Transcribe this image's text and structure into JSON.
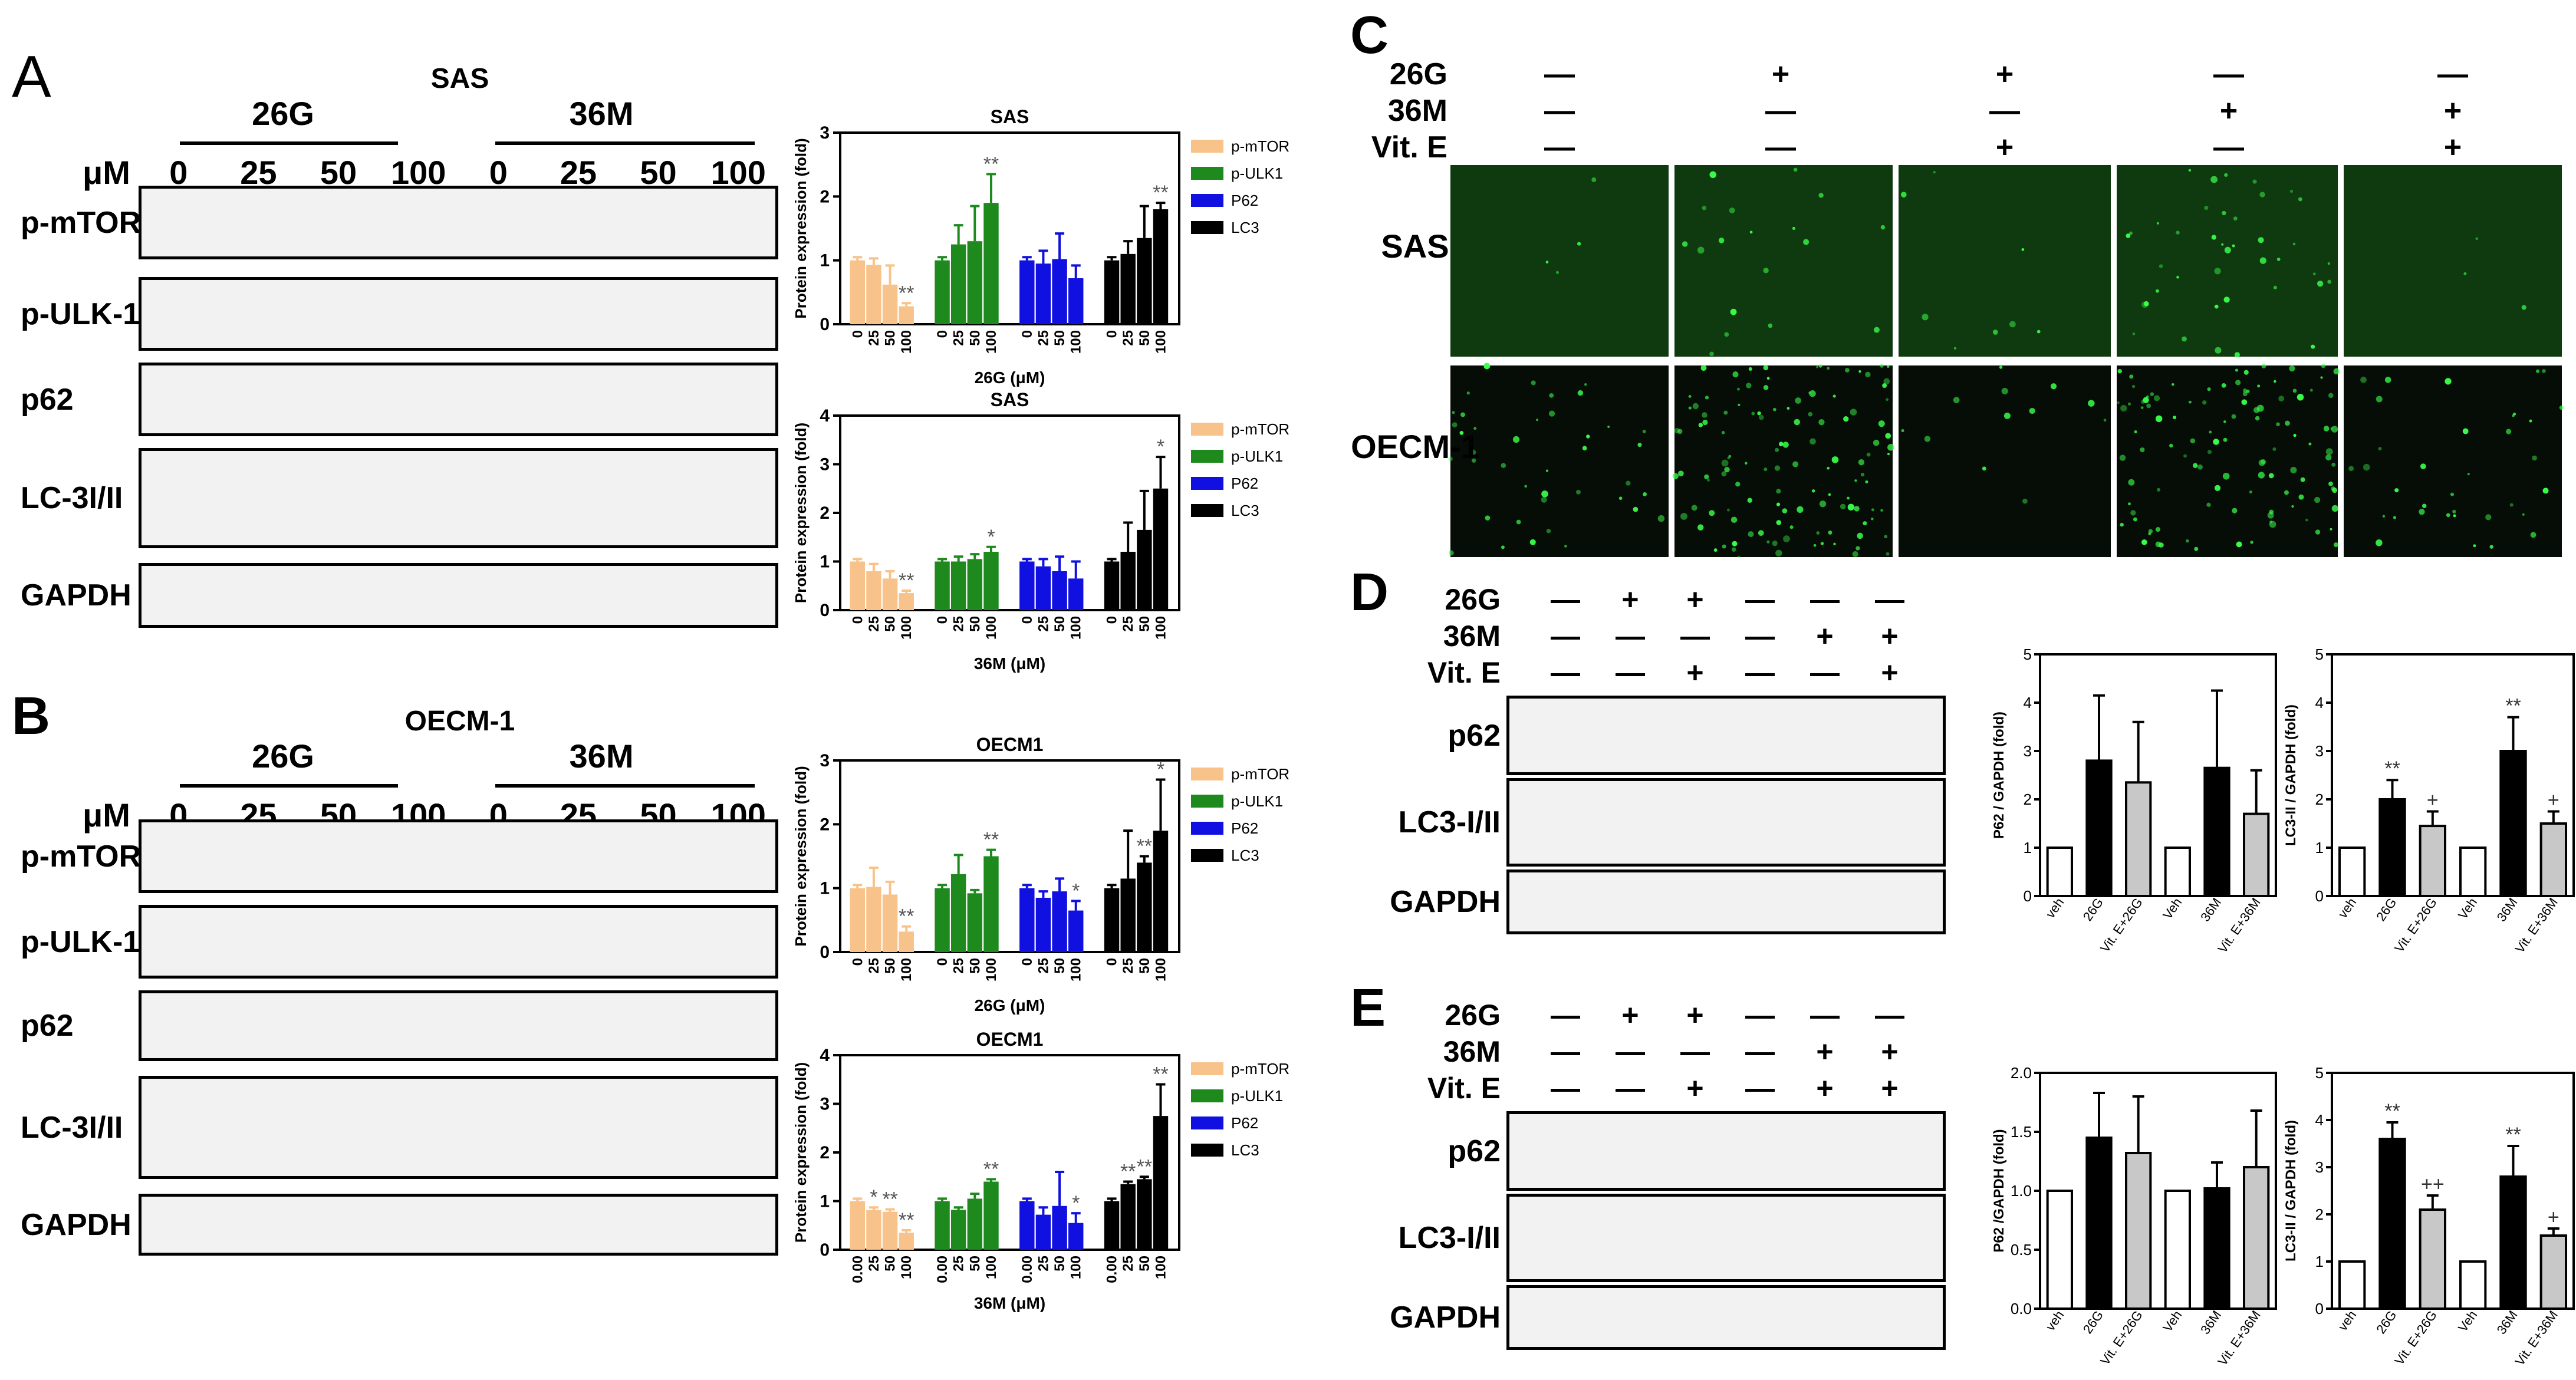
{
  "panels": {
    "A": {
      "letter": "A",
      "cell_line": "SAS",
      "groups": [
        "26G",
        "36M"
      ],
      "dose_label": "μM",
      "doses": [
        "0",
        "25",
        "50",
        "100",
        "0",
        "25",
        "50",
        "100"
      ],
      "blots": [
        "p-mTOR",
        "p-ULK-1",
        "p62",
        "LC-3I/II",
        "GAPDH"
      ]
    },
    "B": {
      "letter": "B",
      "cell_line": "OECM-1",
      "groups": [
        "26G",
        "36M"
      ],
      "dose_label": "μM",
      "doses": [
        "0",
        "25",
        "50",
        "100",
        "0",
        "25",
        "50",
        "100"
      ],
      "blots": [
        "p-mTOR",
        "p-ULK-1",
        "p62",
        "LC-3I/II",
        "GAPDH"
      ]
    },
    "C": {
      "letter": "C",
      "treatments": [
        {
          "label": "26G",
          "marks": [
            "—",
            "+",
            "+",
            "—",
            "—"
          ]
        },
        {
          "label": "36M",
          "marks": [
            "—",
            "—",
            "—",
            "+",
            "+"
          ]
        },
        {
          "label": "Vit. E",
          "marks": [
            "—",
            "—",
            "+",
            "—",
            "+"
          ]
        }
      ],
      "rows": [
        "SAS",
        "OECM-1"
      ]
    },
    "D": {
      "letter": "D",
      "treatments": [
        {
          "label": "26G",
          "marks": [
            "—",
            "+",
            "+",
            "—",
            "—",
            "—"
          ]
        },
        {
          "label": "36M",
          "marks": [
            "—",
            "—",
            "—",
            "—",
            "+",
            "+"
          ]
        },
        {
          "label": "Vit. E",
          "marks": [
            "—",
            "—",
            "+",
            "—",
            "—",
            "+"
          ]
        }
      ],
      "blots": [
        "p62",
        "LC3-I/II",
        "GAPDH"
      ]
    },
    "E": {
      "letter": "E",
      "treatments": [
        {
          "label": "26G",
          "marks": [
            "—",
            "+",
            "+",
            "—",
            "—",
            "—"
          ]
        },
        {
          "label": "36M",
          "marks": [
            "—",
            "—",
            "—",
            "—",
            "+",
            "+"
          ]
        },
        {
          "label": "Vit. E",
          "marks": [
            "—",
            "—",
            "+",
            "—",
            "+",
            "+"
          ]
        }
      ],
      "blots": [
        "p62",
        "LC3-I/II",
        "GAPDH"
      ]
    }
  },
  "colors": {
    "p-mTOR": "#f8c38a",
    "p-ULK1": "#1e8a1e",
    "P62": "#1010e0",
    "LC3": "#000000",
    "black_bar": "#000000",
    "gray_bar": "#c8c8c8",
    "white_bar": "#ffffff",
    "fluorescence": "#0b1a0b",
    "dots": "#39ff4a"
  },
  "chart_data": [
    {
      "type": "bar",
      "title": "SAS",
      "xlabel": "26G (μM)",
      "ylabel": "Protein expression (fold)",
      "ylim": [
        0,
        3
      ],
      "yticks": [
        "0",
        "1",
        "2",
        "3"
      ],
      "categories": [
        "0",
        "25",
        "50",
        "100"
      ],
      "legend": [
        "p-mTOR",
        "p-ULK1",
        "P62",
        "LC3"
      ],
      "series": [
        {
          "name": "p-mTOR",
          "values": [
            1.0,
            0.93,
            0.62,
            0.28
          ],
          "err": [
            0.05,
            0.1,
            0.3,
            0.05
          ],
          "sig": [
            "",
            "",
            "",
            "**"
          ]
        },
        {
          "name": "p-ULK1",
          "values": [
            1.0,
            1.25,
            1.3,
            1.9
          ],
          "err": [
            0.05,
            0.3,
            0.55,
            0.45
          ],
          "sig": [
            "",
            "",
            "",
            "**"
          ]
        },
        {
          "name": "P62",
          "values": [
            1.0,
            0.95,
            1.02,
            0.72
          ],
          "err": [
            0.05,
            0.2,
            0.4,
            0.2
          ],
          "sig": [
            "",
            "",
            "",
            ""
          ]
        },
        {
          "name": "LC3",
          "values": [
            1.0,
            1.1,
            1.35,
            1.8
          ],
          "err": [
            0.05,
            0.2,
            0.5,
            0.1
          ],
          "sig": [
            "",
            "",
            "",
            "**"
          ]
        }
      ]
    },
    {
      "type": "bar",
      "title": "SAS",
      "xlabel": "36M (μM)",
      "ylabel": "Protein expression (fold)",
      "ylim": [
        0,
        4
      ],
      "yticks": [
        "0",
        "1",
        "2",
        "3",
        "4"
      ],
      "categories": [
        "0",
        "25",
        "50",
        "100"
      ],
      "legend": [
        "p-mTOR",
        "p-ULK1",
        "P62",
        "LC3"
      ],
      "series": [
        {
          "name": "p-mTOR",
          "values": [
            1.0,
            0.8,
            0.65,
            0.35
          ],
          "err": [
            0.05,
            0.15,
            0.15,
            0.05
          ],
          "sig": [
            "",
            "",
            "",
            "**"
          ]
        },
        {
          "name": "p-ULK1",
          "values": [
            1.0,
            1.0,
            1.05,
            1.2
          ],
          "err": [
            0.05,
            0.1,
            0.1,
            0.1
          ],
          "sig": [
            "",
            "",
            "",
            "*"
          ]
        },
        {
          "name": "P62",
          "values": [
            1.0,
            0.9,
            0.8,
            0.65
          ],
          "err": [
            0.05,
            0.15,
            0.3,
            0.35
          ],
          "sig": [
            "",
            "",
            "",
            ""
          ]
        },
        {
          "name": "LC3",
          "values": [
            1.0,
            1.2,
            1.65,
            2.5
          ],
          "err": [
            0.05,
            0.6,
            0.8,
            0.65
          ],
          "sig": [
            "",
            "",
            "",
            "*"
          ]
        }
      ]
    },
    {
      "type": "bar",
      "title": "OECM1",
      "xlabel": "26G (μM)",
      "ylabel": "Protein expression (fold)",
      "ylim": [
        0,
        3
      ],
      "yticks": [
        "0",
        "1",
        "2",
        "3"
      ],
      "categories": [
        "0",
        "25",
        "50",
        "100"
      ],
      "legend": [
        "p-mTOR",
        "p-ULK1",
        "P62",
        "LC3"
      ],
      "series": [
        {
          "name": "p-mTOR",
          "values": [
            1.0,
            1.02,
            0.9,
            0.32
          ],
          "err": [
            0.05,
            0.3,
            0.2,
            0.08
          ],
          "sig": [
            "",
            "",
            "",
            "**"
          ]
        },
        {
          "name": "p-ULK1",
          "values": [
            1.0,
            1.22,
            0.92,
            1.5
          ],
          "err": [
            0.05,
            0.3,
            0.05,
            0.1
          ],
          "sig": [
            "",
            "",
            "",
            "**"
          ]
        },
        {
          "name": "P62",
          "values": [
            1.0,
            0.85,
            0.95,
            0.65
          ],
          "err": [
            0.05,
            0.1,
            0.2,
            0.15
          ],
          "sig": [
            "",
            "",
            "",
            "*"
          ]
        },
        {
          "name": "LC3",
          "values": [
            1.0,
            1.15,
            1.4,
            1.9
          ],
          "err": [
            0.05,
            0.75,
            0.1,
            0.8
          ],
          "sig": [
            "",
            "",
            "**",
            "*"
          ]
        }
      ]
    },
    {
      "type": "bar",
      "title": "OECM1",
      "xlabel": "36M (μM)",
      "ylabel": "Protein expression (fold)",
      "ylim": [
        0,
        4
      ],
      "yticks": [
        "0",
        "1",
        "2",
        "3",
        "4"
      ],
      "categories": [
        "0.00",
        "25",
        "50",
        "100"
      ],
      "legend": [
        "p-mTOR",
        "p-ULK1",
        "P62",
        "LC3"
      ],
      "series": [
        {
          "name": "p-mTOR",
          "values": [
            1.0,
            0.82,
            0.78,
            0.35
          ],
          "err": [
            0.05,
            0.05,
            0.05,
            0.05
          ],
          "sig": [
            "",
            "*",
            "**",
            "**"
          ]
        },
        {
          "name": "p-ULK1",
          "values": [
            1.0,
            0.82,
            1.05,
            1.4
          ],
          "err": [
            0.05,
            0.05,
            0.1,
            0.05
          ],
          "sig": [
            "",
            "",
            "",
            "**"
          ]
        },
        {
          "name": "P62",
          "values": [
            1.0,
            0.72,
            0.9,
            0.55
          ],
          "err": [
            0.05,
            0.15,
            0.7,
            0.2
          ],
          "sig": [
            "",
            "",
            "",
            "*"
          ]
        },
        {
          "name": "LC3",
          "values": [
            1.0,
            1.35,
            1.45,
            2.75
          ],
          "err": [
            0.05,
            0.05,
            0.05,
            0.65
          ],
          "sig": [
            "",
            "**",
            "**",
            "**"
          ]
        }
      ]
    },
    {
      "type": "bar",
      "ylabel": "P62 / GAPDH (fold)",
      "ylim": [
        0,
        5
      ],
      "yticks": [
        "0",
        "1",
        "2",
        "3",
        "4",
        "5"
      ],
      "categories": [
        "veh",
        "26G",
        "Vit. E+26G",
        "Veh",
        "36M",
        "Vit. E+36M"
      ],
      "values": [
        1.0,
        2.8,
        2.35,
        1.0,
        2.65,
        1.7
      ],
      "err": [
        0,
        1.35,
        1.25,
        0,
        1.6,
        0.9
      ],
      "fills": [
        "white",
        "black",
        "gray",
        "white",
        "black",
        "gray"
      ],
      "sig": [
        "",
        "",
        "",
        "",
        "",
        ""
      ]
    },
    {
      "type": "bar",
      "ylabel": "LC3-II / GAPDH (fold)",
      "ylim": [
        0,
        5
      ],
      "yticks": [
        "0",
        "1",
        "2",
        "3",
        "4",
        "5"
      ],
      "categories": [
        "veh",
        "26G",
        "Vit. E+26G",
        "Veh",
        "36M",
        "Vit. E+36M"
      ],
      "values": [
        1.0,
        2.0,
        1.45,
        1.0,
        3.0,
        1.5
      ],
      "err": [
        0,
        0.4,
        0.3,
        0,
        0.7,
        0.25
      ],
      "fills": [
        "white",
        "black",
        "gray",
        "white",
        "black",
        "gray"
      ],
      "sig": [
        "",
        "**",
        "+",
        "",
        "**",
        "+"
      ]
    },
    {
      "type": "bar",
      "ylabel": "P62 /GAPDH (fold)",
      "ylim": [
        0,
        2.0
      ],
      "yticks": [
        "0.0",
        "0.5",
        "1.0",
        "1.5",
        "2.0"
      ],
      "categories": [
        "veh",
        "26G",
        "Vit. E+26G",
        "Veh",
        "36M",
        "Vit. E+36M"
      ],
      "values": [
        1.0,
        1.45,
        1.32,
        1.0,
        1.02,
        1.2
      ],
      "err": [
        0,
        0.38,
        0.48,
        0,
        0.22,
        0.48
      ],
      "fills": [
        "white",
        "black",
        "gray",
        "white",
        "black",
        "gray"
      ],
      "sig": [
        "",
        "",
        "",
        "",
        "",
        ""
      ]
    },
    {
      "type": "bar",
      "ylabel": "LC3-II / GAPDH (fold)",
      "ylim": [
        0,
        5
      ],
      "yticks": [
        "0",
        "1",
        "2",
        "3",
        "4",
        "5"
      ],
      "categories": [
        "veh",
        "26G",
        "Vit. E+26G",
        "Veh",
        "36M",
        "Vit. E+36M"
      ],
      "values": [
        1.0,
        3.6,
        2.1,
        1.0,
        2.8,
        1.55
      ],
      "err": [
        0,
        0.35,
        0.3,
        0,
        0.65,
        0.15
      ],
      "fills": [
        "white",
        "black",
        "gray",
        "white",
        "black",
        "gray"
      ],
      "sig": [
        "",
        "**",
        "++",
        "",
        "**",
        "+"
      ]
    }
  ]
}
